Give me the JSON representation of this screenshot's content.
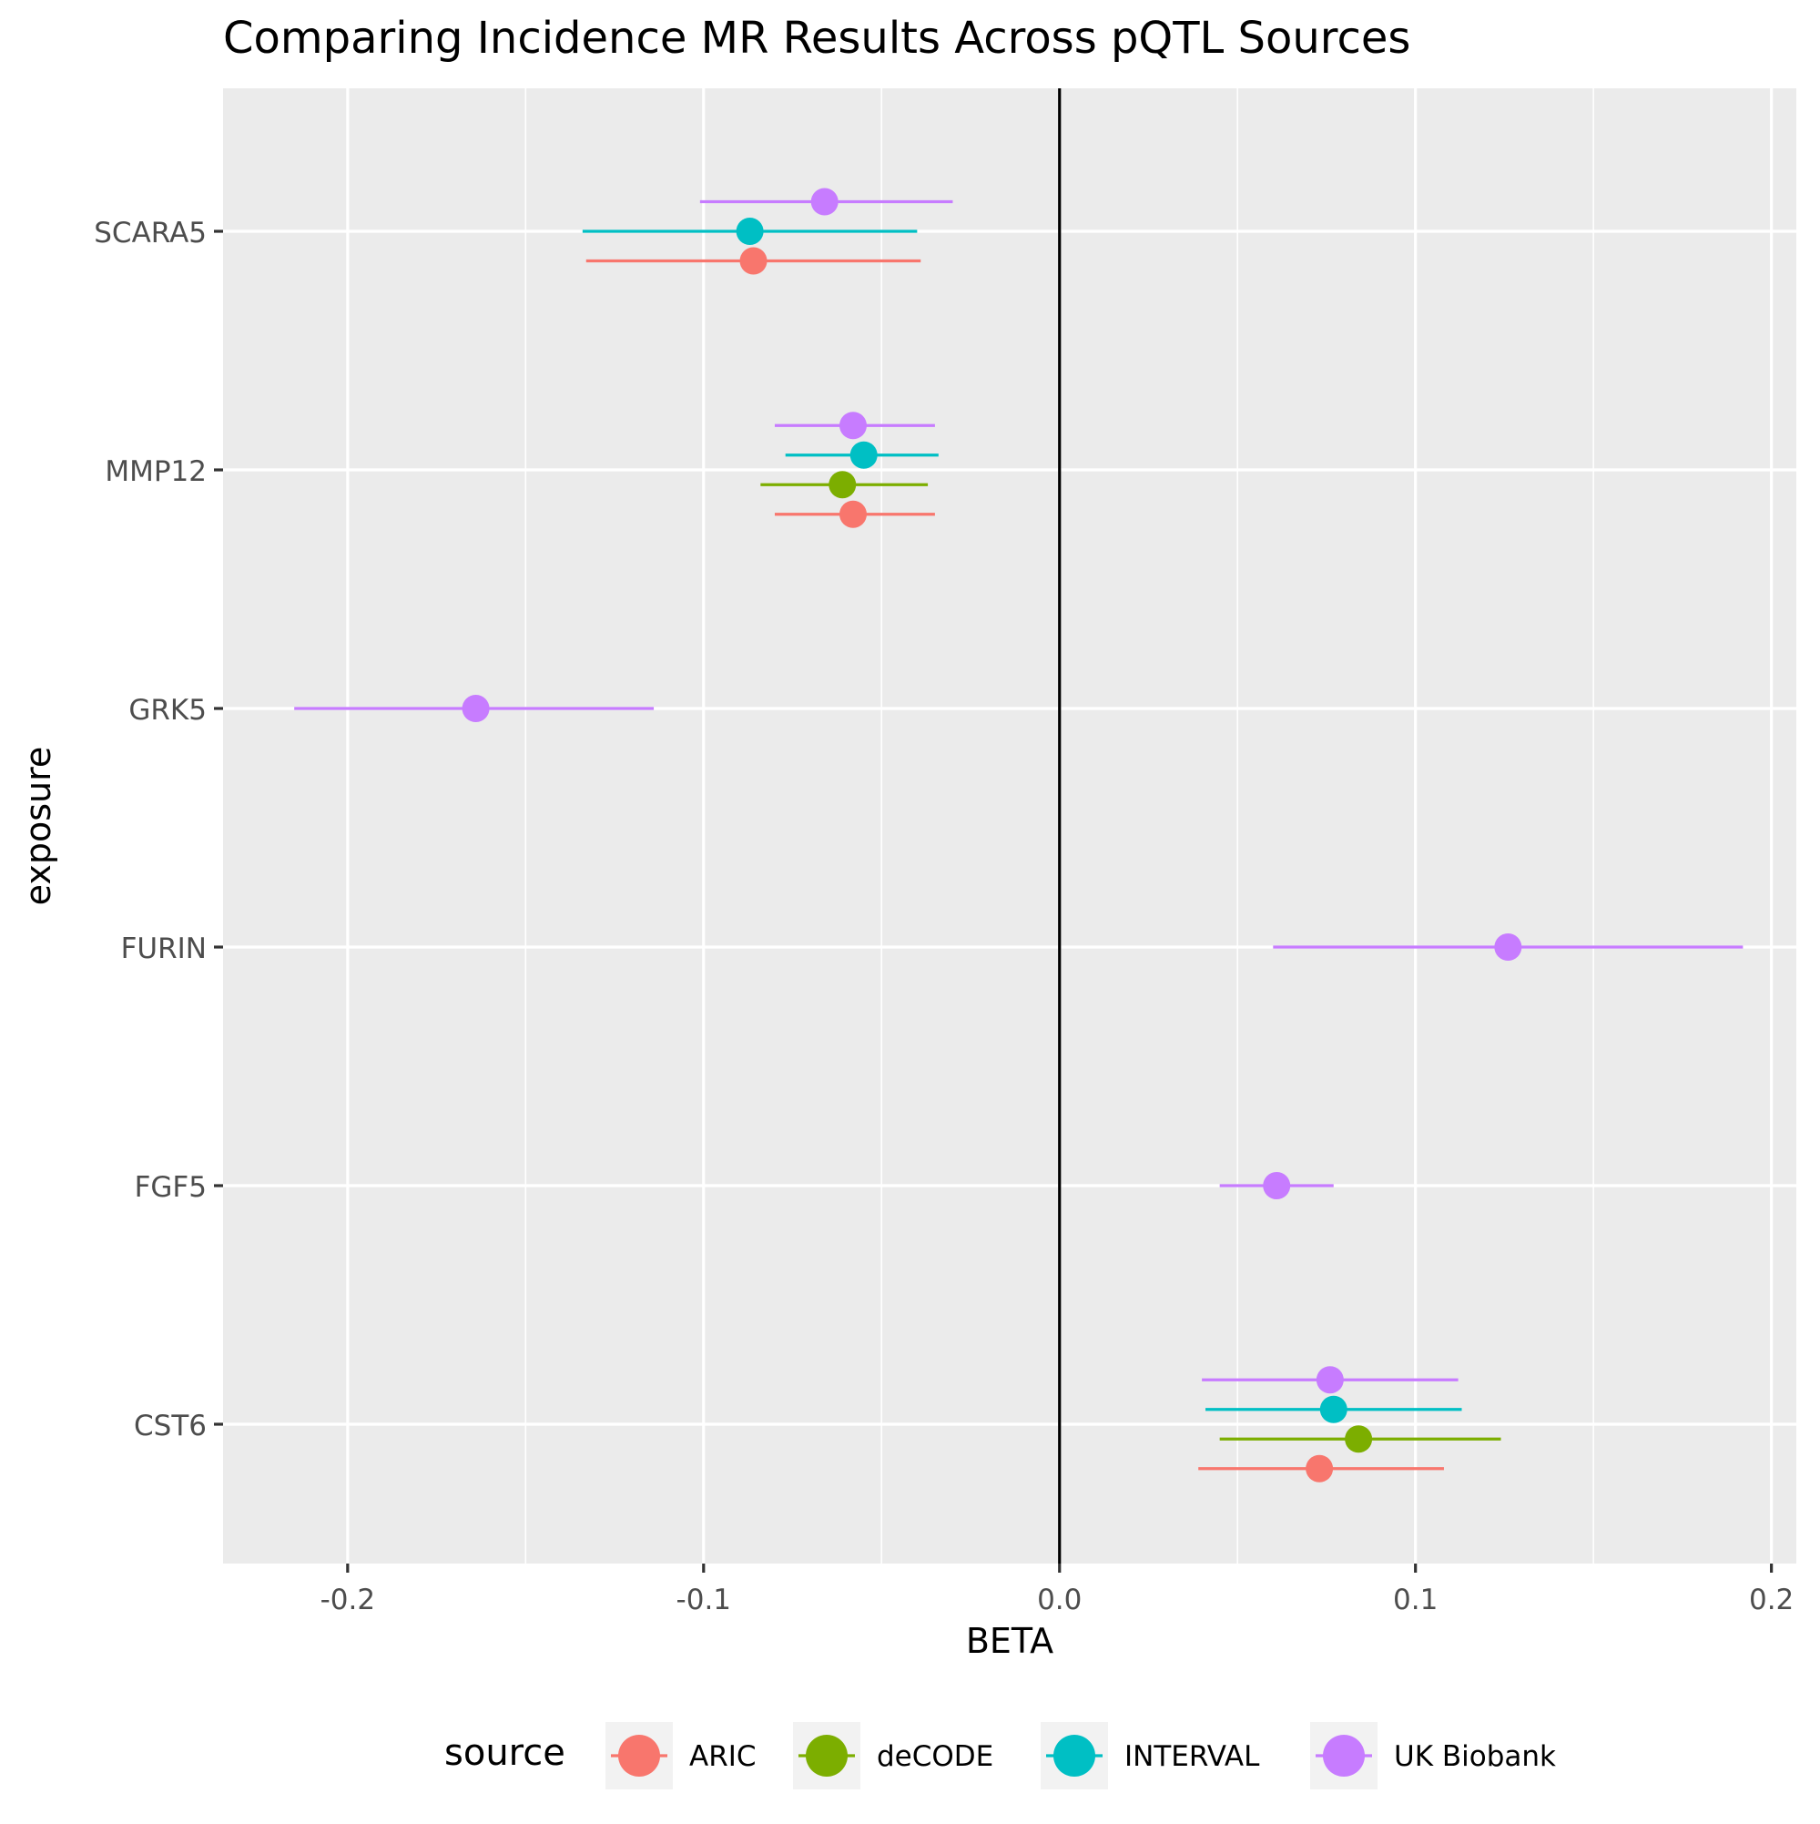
{
  "chart_data": {
    "type": "forest",
    "title": "Comparing Incidence MR Results Across pQTL Sources",
    "xlabel": "BETA",
    "ylabel": "exposure",
    "xlim": [
      -0.235,
      0.207
    ],
    "x_ticks": [
      -0.2,
      -0.1,
      0.0,
      0.1,
      0.2
    ],
    "x_tick_labels": [
      "-0.2",
      "-0.1",
      "0.0",
      "0.1",
      "0.2"
    ],
    "x_minor_ticks": [
      -0.15,
      -0.05,
      0.05,
      0.15
    ],
    "reference_line": 0,
    "categories": [
      "SCARA5",
      "MMP12",
      "GRK5",
      "FURIN",
      "FGF5",
      "CST6"
    ],
    "grid": true,
    "legend_position": "bottom",
    "legend_title": "source",
    "series": [
      {
        "name": "ARIC",
        "color": "#F8766D",
        "points": [
          {
            "exposure": "SCARA5",
            "beta": -0.086,
            "lo": -0.133,
            "hi": -0.039
          },
          {
            "exposure": "MMP12",
            "beta": -0.058,
            "lo": -0.08,
            "hi": -0.035
          },
          {
            "exposure": "CST6",
            "beta": 0.073,
            "lo": 0.039,
            "hi": 0.108
          }
        ]
      },
      {
        "name": "deCODE",
        "color": "#7CAE00",
        "points": [
          {
            "exposure": "MMP12",
            "beta": -0.061,
            "lo": -0.084,
            "hi": -0.037
          },
          {
            "exposure": "CST6",
            "beta": 0.084,
            "lo": 0.045,
            "hi": 0.124
          }
        ]
      },
      {
        "name": "INTERVAL",
        "color": "#00BFC4",
        "points": [
          {
            "exposure": "SCARA5",
            "beta": -0.087,
            "lo": -0.134,
            "hi": -0.04
          },
          {
            "exposure": "MMP12",
            "beta": -0.055,
            "lo": -0.077,
            "hi": -0.034
          },
          {
            "exposure": "CST6",
            "beta": 0.077,
            "lo": 0.041,
            "hi": 0.113
          }
        ]
      },
      {
        "name": "UK Biobank",
        "color": "#C77CFF",
        "points": [
          {
            "exposure": "SCARA5",
            "beta": -0.066,
            "lo": -0.101,
            "hi": -0.03
          },
          {
            "exposure": "MMP12",
            "beta": -0.058,
            "lo": -0.08,
            "hi": -0.035
          },
          {
            "exposure": "GRK5",
            "beta": -0.164,
            "lo": -0.215,
            "hi": -0.114
          },
          {
            "exposure": "FURIN",
            "beta": 0.126,
            "lo": 0.06,
            "hi": 0.192
          },
          {
            "exposure": "FGF5",
            "beta": 0.061,
            "lo": 0.045,
            "hi": 0.077
          },
          {
            "exposure": "CST6",
            "beta": 0.076,
            "lo": 0.04,
            "hi": 0.112
          }
        ]
      }
    ]
  }
}
